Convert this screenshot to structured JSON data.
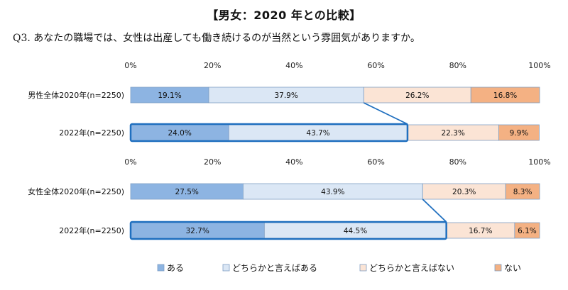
{
  "title": "【男女：2020 年との比較】",
  "question": "Q3. あなたの職場では、女性は出産しても働き続けるのが当然という雰囲気がありますか。",
  "colors": {
    "aru": "#8db4e2",
    "dochiraka_aru": "#dbe7f5",
    "dochiraka_nai": "#fbe4d5",
    "nai": "#f4b183",
    "border": "#1f6fbf"
  },
  "chart_data": [
    {
      "type": "bar",
      "orientation": "horizontal",
      "stacked": true,
      "categories": [
        "男性全体2020年(n=2250)",
        "2022年(n=2250)"
      ],
      "x_tick_labels": [
        "0%",
        "20%",
        "40%",
        "60%",
        "80%",
        "100%"
      ],
      "xlim": [
        0,
        100
      ],
      "grid": false,
      "series": [
        {
          "name": "ある",
          "values": [
            19.1,
            24.0
          ]
        },
        {
          "name": "どちらかと言えばある",
          "values": [
            37.9,
            43.7
          ]
        },
        {
          "name": "どちらかと言えばない",
          "values": [
            26.2,
            22.3
          ]
        },
        {
          "name": "ない",
          "values": [
            16.8,
            9.9
          ]
        }
      ],
      "value_labels": [
        [
          "19.1%",
          "37.9%",
          "26.2%",
          "16.8%"
        ],
        [
          "24.0%",
          "43.7%",
          "22.3%",
          "9.9%"
        ]
      ],
      "highlighted_category_index": 1
    },
    {
      "type": "bar",
      "orientation": "horizontal",
      "stacked": true,
      "categories": [
        "女性全体2020年(n=2250)",
        "2022年(n=2250)"
      ],
      "x_tick_labels": [
        "0%",
        "20%",
        "40%",
        "60%",
        "80%",
        "100%"
      ],
      "xlim": [
        0,
        100
      ],
      "grid": false,
      "series": [
        {
          "name": "ある",
          "values": [
            27.5,
            32.7
          ]
        },
        {
          "name": "どちらかと言えばある",
          "values": [
            43.9,
            44.5
          ]
        },
        {
          "name": "どちらかと言えばない",
          "values": [
            20.3,
            16.7
          ]
        },
        {
          "name": "ない",
          "values": [
            8.3,
            6.1
          ]
        }
      ],
      "value_labels": [
        [
          "27.5%",
          "43.9%",
          "20.3%",
          "8.3%"
        ],
        [
          "32.7%",
          "44.5%",
          "16.7%",
          "6.1%"
        ]
      ],
      "highlighted_category_index": 1
    }
  ],
  "legend": {
    "placement": "bottom",
    "items": [
      "ある",
      "どちらかと言えばある",
      "どちらかと言えばない",
      "ない"
    ]
  }
}
